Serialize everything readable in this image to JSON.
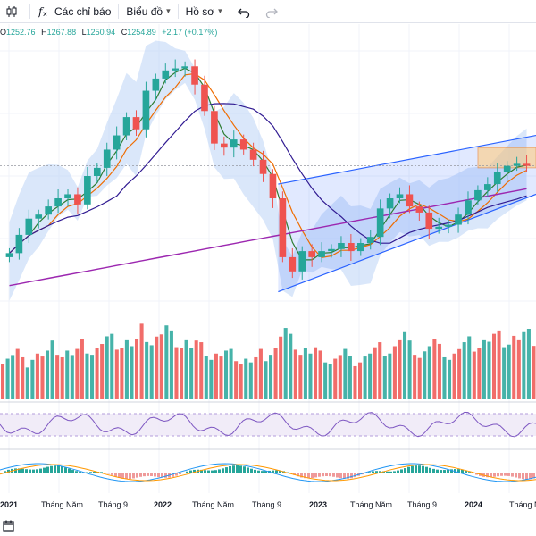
{
  "toolbar": {
    "indicators_label": "Các chỉ báo",
    "chart_type_label": "Biểu đồ",
    "profile_label": "Hồ sơ",
    "icons": [
      "candle-icon",
      "function-icon",
      "chevron-down-icon",
      "undo-icon",
      "redo-icon"
    ]
  },
  "legend": {
    "open_label": "O",
    "open": "1252.76",
    "high_label": "H",
    "high": "1267.88",
    "low_label": "L",
    "low": "1250.94",
    "close_label": "C",
    "close": "1254.89",
    "change": "+2.17 (+0.17%)"
  },
  "time_axis": [
    {
      "label": "2021",
      "bold": true
    },
    {
      "label": "Tháng Năm",
      "bold": false
    },
    {
      "label": "Tháng 9",
      "bold": false
    },
    {
      "label": "2022",
      "bold": true
    },
    {
      "label": "Tháng Năm",
      "bold": false
    },
    {
      "label": "Tháng 9",
      "bold": false
    },
    {
      "label": "2023",
      "bold": true
    },
    {
      "label": "Tháng Năm",
      "bold": false
    },
    {
      "label": "Tháng 9",
      "bold": false
    },
    {
      "label": "2024",
      "bold": true
    },
    {
      "label": "Tháng Năm",
      "bold": false
    }
  ],
  "colors": {
    "up": "#26a69a",
    "down": "#ef5350",
    "ma_fast": "#2e7d32",
    "ma_mid": "#ef6c00",
    "ma_slow": "#311b92",
    "ma_long": "#9c27b0",
    "band": "#bbd3f5",
    "channel": "#2962ff",
    "rsi": "#7e57c2",
    "macd": "#2196f3",
    "signal": "#ff9800"
  },
  "chart_data": {
    "type": "candlestick",
    "price_series": [
      1040,
      1085,
      1125,
      1135,
      1155,
      1175,
      1185,
      1160,
      1230,
      1250,
      1295,
      1330,
      1375,
      1345,
      1440,
      1470,
      1490,
      1495,
      1500,
      1455,
      1390,
      1310,
      1300,
      1320,
      1295,
      1270,
      1235,
      1175,
      1030,
      995,
      1045,
      1030,
      1045,
      1050,
      1065,
      1045,
      1065,
      1080,
      1150,
      1175,
      1185,
      1155,
      1140,
      1100,
      1105,
      1110,
      1135,
      1170,
      1195,
      1210,
      1240,
      1255,
      1260,
      1255
    ],
    "volume_series": [
      0.55,
      0.6,
      0.5,
      0.62,
      0.58,
      0.7,
      0.66,
      0.6,
      0.72,
      0.7,
      0.75,
      0.78,
      0.8,
      0.72,
      0.9,
      0.85,
      0.88,
      0.82,
      0.8,
      0.7,
      0.68,
      0.62,
      0.58,
      0.6,
      0.55,
      0.5,
      0.6,
      0.7,
      0.85,
      0.78,
      0.7,
      0.62,
      0.58,
      0.55,
      0.6,
      0.52,
      0.58,
      0.62,
      0.68,
      0.72,
      0.8,
      0.7,
      0.65,
      0.72,
      0.66,
      0.62,
      0.68,
      0.75,
      0.8,
      0.78,
      0.82,
      0.86,
      0.8,
      0.84
    ]
  }
}
